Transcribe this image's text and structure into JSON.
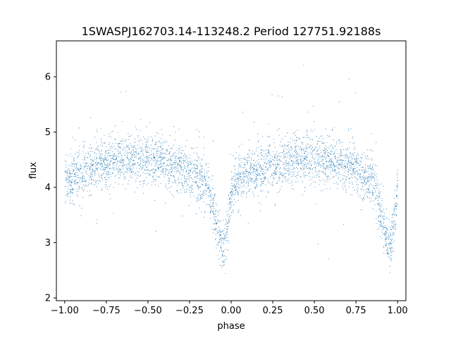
{
  "chart_data": {
    "type": "scatter",
    "title": "1SWASPJ162703.14-113248.2 Period 127751.92188s",
    "xlabel": "phase",
    "ylabel": "flux",
    "xlim": [
      -1.05,
      1.05
    ],
    "ylim": [
      1.95,
      6.65
    ],
    "xticks": [
      -1.0,
      -0.75,
      -0.5,
      -0.25,
      0.0,
      0.25,
      0.5,
      0.75,
      1.0
    ],
    "xtick_labels": [
      "−1.00",
      "−0.75",
      "−0.50",
      "−0.25",
      "0.00",
      "0.25",
      "0.50",
      "0.75",
      "1.00"
    ],
    "yticks": [
      2,
      3,
      4,
      5,
      6
    ],
    "ytick_labels": [
      "2",
      "3",
      "4",
      "5",
      "6"
    ],
    "grid": false,
    "marker_color": "#1f77b4",
    "series": [
      {
        "light_curve": {
          "phase": [
            -1.0,
            -0.9,
            -0.8,
            -0.7,
            -0.6,
            -0.5,
            -0.4,
            -0.3,
            -0.2,
            -0.15,
            -0.1,
            -0.07,
            -0.05,
            -0.03,
            0.0,
            0.05,
            0.1,
            0.2,
            0.3,
            0.4,
            0.5,
            0.6,
            0.7,
            0.8,
            0.85,
            0.9,
            0.93,
            0.95,
            0.97,
            1.0
          ],
          "flux": [
            4.15,
            4.25,
            4.4,
            4.5,
            4.55,
            4.5,
            4.45,
            4.35,
            4.2,
            4.05,
            3.5,
            3.05,
            2.95,
            3.1,
            4.0,
            4.15,
            4.25,
            4.35,
            4.45,
            4.5,
            4.55,
            4.5,
            4.4,
            4.25,
            4.1,
            3.5,
            3.05,
            2.95,
            3.1,
            4.05
          ]
        }
      }
    ]
  }
}
